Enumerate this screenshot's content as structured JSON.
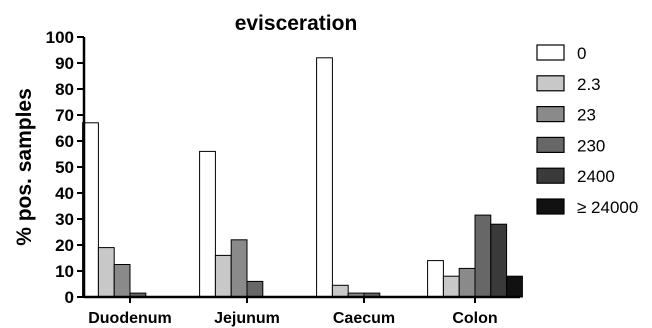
{
  "chart_data": {
    "type": "bar",
    "title": "evisceration",
    "xlabel": "",
    "ylabel": "% pos. samples",
    "ylim": [
      0,
      100
    ],
    "yticks": [
      0,
      10,
      20,
      30,
      40,
      50,
      60,
      70,
      80,
      90,
      100
    ],
    "ytick_labels": [
      "0",
      "10",
      "20",
      "30",
      "40",
      "50",
      "60",
      "70",
      "80",
      "90",
      "100"
    ],
    "grid": false,
    "legend_position": "right",
    "categories": [
      "Duodenum",
      "Jejunum",
      "Caecum",
      "Colon"
    ],
    "series": [
      {
        "name": "0",
        "color": "#ffffff",
        "values": [
          67,
          56,
          92,
          14
        ]
      },
      {
        "name": "2.3",
        "color": "#c8c8c8",
        "values": [
          19,
          16,
          4.5,
          8
        ]
      },
      {
        "name": "23",
        "color": "#8a8a8a",
        "values": [
          12.5,
          22,
          1.5,
          11
        ]
      },
      {
        "name": "230",
        "color": "#676767",
        "values": [
          1.5,
          6,
          1.5,
          31.5
        ]
      },
      {
        "name": "2400",
        "color": "#3a3a3a",
        "values": [
          0,
          0,
          0,
          28
        ]
      },
      {
        "name": "≥ 24000",
        "color": "#111111",
        "values": [
          0,
          0,
          0,
          8
        ]
      }
    ]
  }
}
